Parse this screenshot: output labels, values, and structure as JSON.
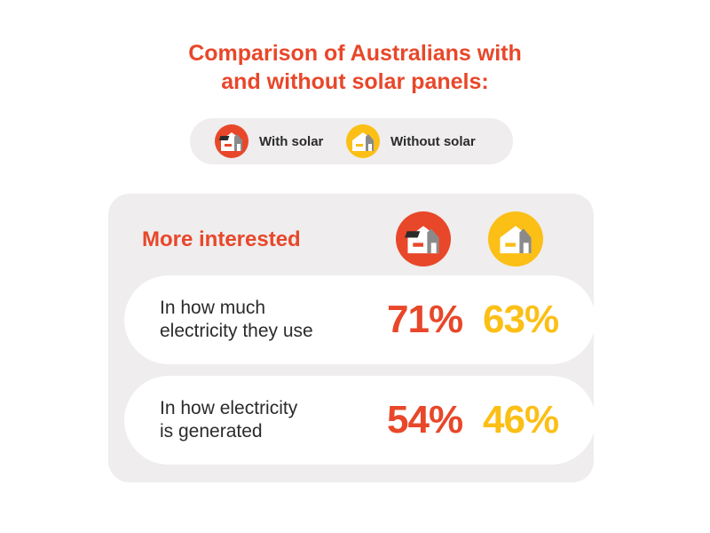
{
  "title_line1": "Comparison of Australians with",
  "title_line2": "and without solar panels:",
  "legend": [
    {
      "label": "With solar",
      "color": "#e8472a",
      "icon": "house-with-solar-panel-icon"
    },
    {
      "label": "Without solar",
      "color": "#fbbf16",
      "icon": "house-without-solar-icon"
    }
  ],
  "panel_heading": "More interested",
  "chart_data": {
    "type": "table",
    "title": "Comparison of Australians with and without solar panels:",
    "section": "More interested",
    "series": [
      {
        "name": "With solar",
        "color": "#e8472a",
        "values": [
          71,
          54
        ]
      },
      {
        "name": "Without solar",
        "color": "#fbbf16",
        "values": [
          63,
          46
        ]
      }
    ],
    "rows": [
      {
        "label_line1": "In how much",
        "label_line2": "electricity they use",
        "with_solar": "71%",
        "without_solar": "63%"
      },
      {
        "label_line1": "In how electricity",
        "label_line2": "is generated",
        "with_solar": "54%",
        "without_solar": "46%"
      }
    ]
  }
}
